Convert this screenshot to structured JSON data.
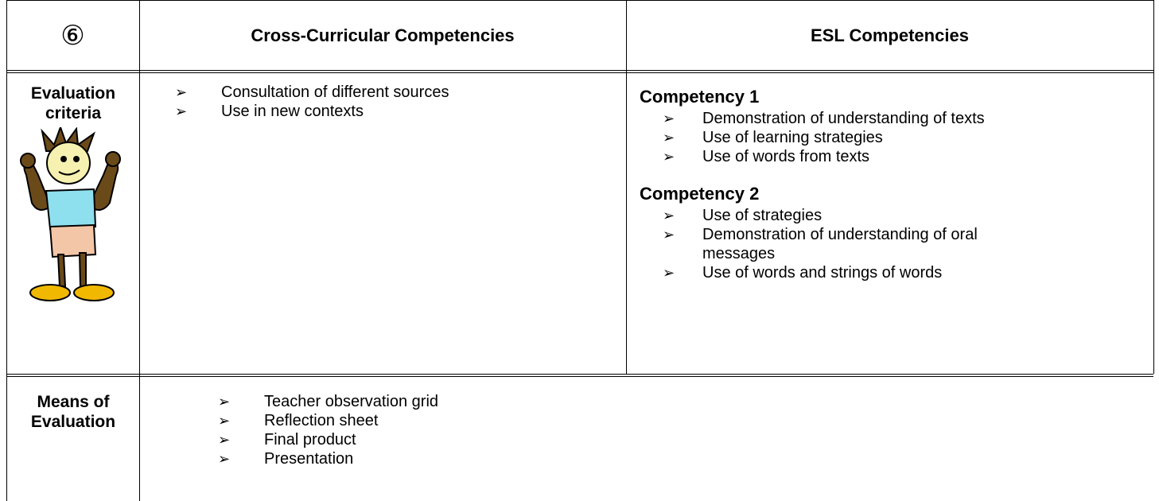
{
  "table": {
    "header": [
      "⑥",
      "Cross-Curricular Competencies",
      "ESL Competencies"
    ],
    "rows": [
      {
        "label": "Evaluation criteria",
        "cross_curricular": [
          "Consultation of different sources",
          "Use in new contexts"
        ],
        "esl": [
          {
            "title": "Competency 1",
            "items": [
              "Demonstration of understanding of texts",
              "Use of learning strategies",
              "Use of words from texts"
            ]
          },
          {
            "title": "Competency 2",
            "items": [
              "Use of strategies",
              "Demonstration of understanding of oral messages",
              "Use of words and strings of words"
            ]
          }
        ]
      },
      {
        "label": "Means of Evaluation",
        "items": [
          "Teacher observation grid",
          "Reflection sheet",
          "Final product",
          "Presentation"
        ]
      }
    ]
  }
}
